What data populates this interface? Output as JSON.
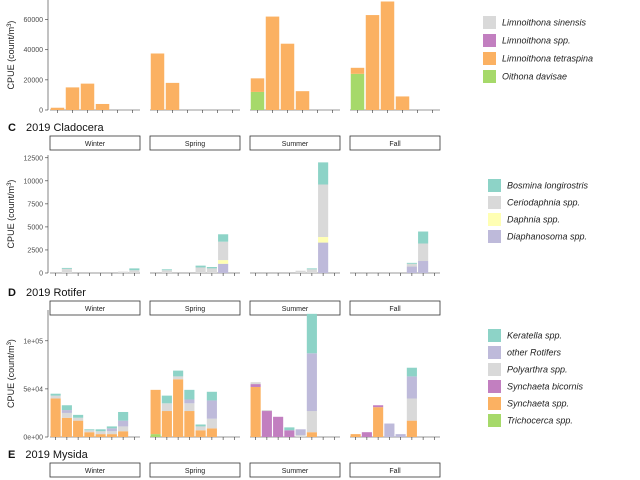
{
  "chart_data": [
    {
      "type": "bar",
      "panel_letter": "",
      "title": "",
      "ylabel": "CPUE (count/m",
      "ylabel_sup": "3",
      "ylabel_close": ")",
      "yticks": [
        {
          "value": 0,
          "label": "0"
        },
        {
          "value": 20000,
          "label": "20000"
        },
        {
          "value": 40000,
          "label": "40000"
        },
        {
          "value": 60000,
          "label": "60000"
        }
      ],
      "ylim": [
        0,
        73000
      ],
      "facets": [],
      "bars_per_facet": 6,
      "legend": [
        {
          "name": "Limnoithona sinensis",
          "color": "#d9d9d9"
        },
        {
          "name": "Limnoithona spp.",
          "color": "#c27fc0"
        },
        {
          "name": "Limnoithona tetraspina",
          "color": "#fbb162"
        },
        {
          "name": "Oithona davisae",
          "color": "#a6d96a"
        }
      ],
      "stack_order": [
        "Oithona davisae",
        "Limnoithona tetraspina",
        "Limnoithona spp.",
        "Limnoithona sinensis"
      ],
      "data": [
        [
          {
            "Limnoithona tetraspina": 1500
          },
          {
            "Limnoithona tetraspina": 15000
          },
          {
            "Limnoithona tetraspina": 17500
          },
          {
            "Limnoithona tetraspina": 4000
          },
          {},
          {}
        ],
        [
          {
            "Limnoithona tetraspina": 37500
          },
          {
            "Limnoithona tetraspina": 18000
          },
          {},
          {},
          {},
          {}
        ],
        [
          {
            "Oithona davisae": 12000,
            "Limnoithona tetraspina": 9000
          },
          {
            "Limnoithona tetraspina": 62000
          },
          {
            "Limnoithona tetraspina": 44000
          },
          {
            "Limnoithona tetraspina": 12500
          },
          {},
          {}
        ],
        [
          {
            "Oithona davisae": 24000,
            "Limnoithona tetraspina": 4000
          },
          {
            "Limnoithona tetraspina": 63000
          },
          {
            "Limnoithona tetraspina": 72000
          },
          {
            "Limnoithona tetraspina": 9000
          },
          {},
          {}
        ]
      ]
    },
    {
      "type": "bar",
      "panel_letter": "C",
      "title": "2019 Cladocera",
      "ylabel": "CPUE (count/m",
      "ylabel_sup": "3",
      "ylabel_close": ")",
      "yticks": [
        {
          "value": 0,
          "label": "0"
        },
        {
          "value": 2500,
          "label": "2500"
        },
        {
          "value": 5000,
          "label": "5000"
        },
        {
          "value": 7500,
          "label": "7500"
        },
        {
          "value": 10000,
          "label": "10000"
        },
        {
          "value": 12500,
          "label": "12500"
        }
      ],
      "ylim": [
        0,
        12800
      ],
      "facets": [
        "Winter",
        "Spring",
        "Summer",
        "Fall"
      ],
      "bars_per_facet": 8,
      "legend": [
        {
          "name": "Bosmina longirostris",
          "color": "#8dd3c7"
        },
        {
          "name": "Ceriodaphnia spp.",
          "color": "#d9d9d9"
        },
        {
          "name": "Daphnia spp.",
          "color": "#ffffb3"
        },
        {
          "name": "Diaphanosoma spp.",
          "color": "#bebada"
        }
      ],
      "stack_order": [
        "Diaphanosoma spp.",
        "Daphnia spp.",
        "Ceriodaphnia spp.",
        "Bosmina longirostris"
      ],
      "data": [
        [
          {},
          {
            "Ceriodaphnia spp.": 450,
            "Bosmina longirostris": 100
          },
          {},
          {},
          {},
          {},
          {
            "Ceriodaphnia spp.": 150
          },
          {
            "Ceriodaphnia spp.": 300,
            "Bosmina longirostris": 200
          }
        ],
        [
          {},
          {
            "Ceriodaphnia spp.": 300,
            "Bosmina longirostris": 100
          },
          {},
          {},
          {
            "Ceriodaphnia spp.": 600,
            "Bosmina longirostris": 200
          },
          {
            "Ceriodaphnia spp.": 500,
            "Bosmina longirostris": 150
          },
          {
            "Diaphanosoma spp.": 1000,
            "Daphnia spp.": 400,
            "Ceriodaphnia spp.": 2000,
            "Bosmina longirostris": 800
          },
          {}
        ],
        [
          {},
          {},
          {},
          {},
          {
            "Ceriodaphnia spp.": 250
          },
          {
            "Ceriodaphnia spp.": 400,
            "Bosmina longirostris": 100
          },
          {
            "Diaphanosoma spp.": 3300,
            "Daphnia spp.": 600,
            "Ceriodaphnia spp.": 5700,
            "Bosmina longirostris": 2400
          },
          {}
        ],
        [
          {},
          {},
          {},
          {},
          {},
          {
            "Diaphanosoma spp.": 700,
            "Ceriodaphnia spp.": 300,
            "Bosmina longirostris": 100
          },
          {
            "Diaphanosoma spp.": 1300,
            "Ceriodaphnia spp.": 1900,
            "Bosmina longirostris": 1300
          },
          {}
        ]
      ]
    },
    {
      "type": "bar",
      "panel_letter": "D",
      "title": "2019 Rotifer",
      "ylabel": "CPUE (count/m",
      "ylabel_sup": "3",
      "ylabel_close": ")",
      "yticks": [
        {
          "value": 0,
          "label": "0e+00"
        },
        {
          "value": 50000,
          "label": "5e+04"
        },
        {
          "value": 100000,
          "label": "1e+05"
        }
      ],
      "ylim": [
        0,
        132000
      ],
      "facets": [
        "Winter",
        "Spring",
        "Summer",
        "Fall"
      ],
      "bars_per_facet": 8,
      "legend": [
        {
          "name": "Keratella spp.",
          "color": "#8dd3c7"
        },
        {
          "name": "other Rotifers",
          "color": "#bebada"
        },
        {
          "name": "Polyarthra spp.",
          "color": "#d9d9d9"
        },
        {
          "name": "Synchaeta bicornis",
          "color": "#c27fc0"
        },
        {
          "name": "Synchaeta spp.",
          "color": "#fbb162"
        },
        {
          "name": "Trichocerca spp.",
          "color": "#a6d96a"
        }
      ],
      "stack_order": [
        "Trichocerca spp.",
        "Synchaeta spp.",
        "Synchaeta bicornis",
        "Polyarthra spp.",
        "other Rotifers",
        "Keratella spp."
      ],
      "data": [
        [
          {
            "Synchaeta spp.": 40000,
            "Polyarthra spp.": 3000,
            "Keratella spp.": 2000
          },
          {
            "Synchaeta spp.": 20000,
            "Polyarthra spp.": 5000,
            "other Rotifers": 3000,
            "Keratella spp.": 5000
          },
          {
            "Synchaeta spp.": 17000,
            "Polyarthra spp.": 3000,
            "Keratella spp.": 3000
          },
          {
            "Synchaeta spp.": 5000,
            "Polyarthra spp.": 2000,
            "Keratella spp.": 1000
          },
          {
            "Synchaeta spp.": 3000,
            "Polyarthra spp.": 3000,
            "Keratella spp.": 2000
          },
          {
            "Synchaeta spp.": 3000,
            "Polyarthra spp.": 3000,
            "other Rotifers": 3000,
            "Keratella spp.": 2000
          },
          {
            "Synchaeta spp.": 6000,
            "Polyarthra spp.": 5000,
            "other Rotifers": 6000,
            "Keratella spp.": 9000
          },
          {}
        ],
        [
          {
            "Trichocerca spp.": 3000,
            "Synchaeta spp.": 46000
          },
          {
            "Synchaeta spp.": 27000,
            "Polyarthra spp.": 8000,
            "Keratella spp.": 8000
          },
          {
            "Synchaeta spp.": 60000,
            "Polyarthra spp.": 3000,
            "Keratella spp.": 6000
          },
          {
            "Synchaeta spp.": 27000,
            "Polyarthra spp.": 8000,
            "other Rotifers": 4000,
            "Keratella spp.": 10000
          },
          {
            "Synchaeta spp.": 7000,
            "Polyarthra spp.": 4000,
            "Keratella spp.": 2000
          },
          {
            "Synchaeta spp.": 9000,
            "Polyarthra spp.": 10000,
            "other Rotifers": 19000,
            "Keratella spp.": 9000
          },
          {},
          {}
        ],
        [
          {
            "Synchaeta spp.": 52000,
            "Synchaeta bicornis": 3000,
            "Polyarthra spp.": 2000
          },
          {
            "Synchaeta bicornis": 27000,
            "Polyarthra spp.": 1000
          },
          {
            "Synchaeta bicornis": 21000
          },
          {
            "Synchaeta bicornis": 7000,
            "Keratella spp.": 3000
          },
          {
            "Polyarthra spp.": 2000,
            "other Rotifers": 6000
          },
          {
            "Synchaeta spp.": 5000,
            "Polyarthra spp.": 22000,
            "other Rotifers": 60000,
            "Keratella spp.": 41000
          },
          {},
          {}
        ],
        [
          {
            "Synchaeta spp.": 3000
          },
          {
            "Synchaeta bicornis": 5000
          },
          {
            "Synchaeta spp.": 31000,
            "Synchaeta bicornis": 2000
          },
          {
            "other Rotifers": 14000
          },
          {
            "other Rotifers": 3000
          },
          {
            "Synchaeta spp.": 17000,
            "Polyarthra spp.": 23000,
            "other Rotifers": 23000,
            "Keratella spp.": 9000
          },
          {},
          {}
        ]
      ]
    },
    {
      "type": "bar",
      "panel_letter": "E",
      "title": "2019 Mysida",
      "facets": [
        "Winter",
        "Spring",
        "Summer",
        "Fall"
      ],
      "legend": []
    }
  ]
}
